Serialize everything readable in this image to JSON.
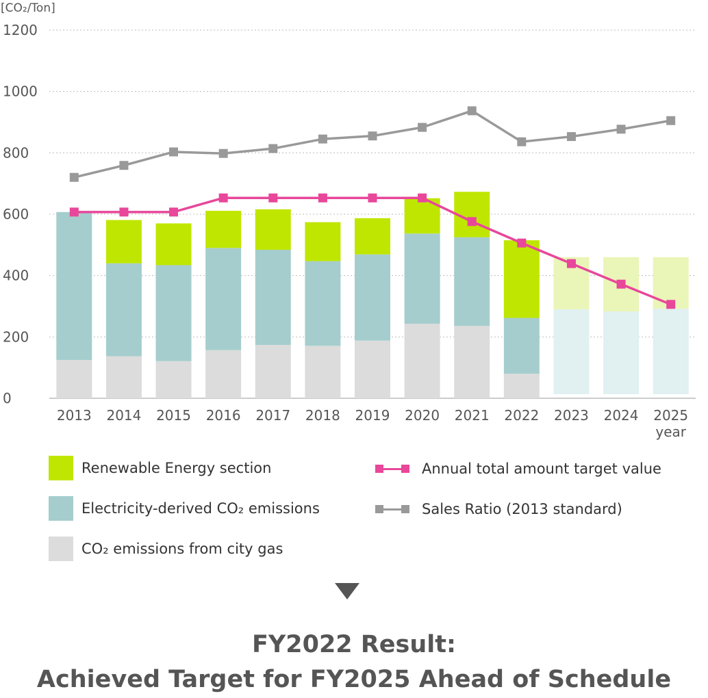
{
  "chart_data": {
    "type": "bar",
    "unit_label": "[CO₂/Ton]",
    "x_unit": "year",
    "ylim": [
      0,
      1200
    ],
    "yticks": [
      0,
      200,
      400,
      600,
      800,
      1000,
      1200
    ],
    "grid": true,
    "categories": [
      "2013",
      "2014",
      "2015",
      "2016",
      "2017",
      "2018",
      "2019",
      "2020",
      "2021",
      "2022",
      "2023",
      "2024",
      "2025"
    ],
    "stacked_series": [
      {
        "name": "CO₂ emissions from city gas",
        "color": "#dcdcdc",
        "values": [
          125,
          137,
          121,
          157,
          174,
          171,
          188,
          243,
          236,
          80,
          null,
          null,
          null
        ]
      },
      {
        "name": "Electricity-derived CO₂ emissions",
        "color": "#a5cdcd",
        "values": [
          482,
          303,
          313,
          333,
          310,
          276,
          281,
          294,
          289,
          182,
          null,
          null,
          null
        ]
      },
      {
        "name": "Renewable Energy section",
        "color": "#bfe600",
        "values": [
          0,
          141,
          136,
          121,
          132,
          127,
          118,
          115,
          148,
          253,
          null,
          null,
          null
        ]
      }
    ],
    "projected_bars": {
      "base_color": "#e1f0f0",
      "top_color": "#eaf5b8",
      "base_values": [
        null,
        null,
        null,
        null,
        null,
        null,
        null,
        null,
        null,
        null,
        290,
        283,
        292
      ],
      "top_values": [
        null,
        null,
        null,
        null,
        null,
        null,
        null,
        null,
        null,
        null,
        170,
        177,
        168
      ]
    },
    "line_series": [
      {
        "name": "Annual total amount target value",
        "color": "#e8479a",
        "values": [
          607,
          607,
          607,
          653,
          653,
          653,
          653,
          653,
          576,
          506,
          439,
          372,
          306
        ]
      },
      {
        "name": "Sales Ratio (2013 standard)",
        "color": "#999999",
        "values": [
          720,
          759,
          803,
          798,
          814,
          845,
          855,
          883,
          937,
          836,
          853,
          877,
          905
        ]
      }
    ]
  },
  "headline": {
    "line1": "FY2022 Result:",
    "line2": "Achieved Target for FY2025 Ahead of Schedule"
  },
  "colors": {
    "arrow": "#555555",
    "grid": "#bbbbbb",
    "axis_text": "#555555"
  }
}
